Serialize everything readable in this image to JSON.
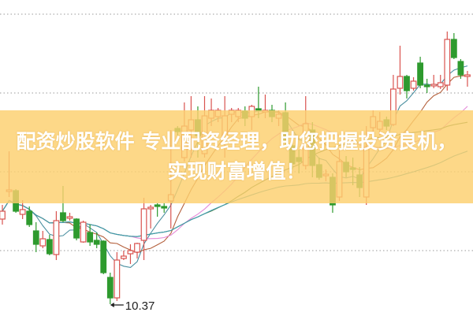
{
  "banner": {
    "line1": "配资炒股软件 专业配资经理，助您把握投资良机，",
    "line2": "实现财富增值！"
  },
  "colors": {
    "up": "#d9534f",
    "down": "#2e9a2e",
    "banner": "#fccf6e",
    "ma": [
      "#4a8fa0",
      "#b4603c",
      "#e58ad8",
      "#4f7d3c",
      "#3d9cb0"
    ]
  },
  "chart_data": {
    "type": "candlestick",
    "title": "",
    "grid": true,
    "annotations": [
      {
        "text": "10.37",
        "target": "lowest-low"
      }
    ],
    "moving_averages": [
      5,
      10,
      20,
      30,
      60
    ],
    "candles": [
      [
        12.53,
        12.73,
        12.89,
        12.39
      ],
      [
        13.23,
        13.27,
        14.25,
        13.09
      ],
      [
        13.25,
        12.73,
        13.29,
        12.69
      ],
      [
        12.65,
        12.77,
        13.01,
        12.53
      ],
      [
        12.73,
        12.39,
        12.85,
        12.33
      ],
      [
        12.23,
        11.89,
        12.45,
        11.69
      ],
      [
        11.85,
        12.03,
        12.23,
        11.79
      ],
      [
        12.01,
        11.65,
        12.13,
        11.61
      ],
      [
        11.63,
        12.49,
        12.73,
        11.49
      ],
      [
        12.69,
        12.49,
        13.37,
        12.45
      ],
      [
        12.55,
        12.59,
        12.69,
        12.49
      ],
      [
        12.53,
        12.05,
        12.55,
        11.99
      ],
      [
        11.95,
        12.45,
        12.49,
        11.93
      ],
      [
        12.19,
        11.95,
        12.39,
        11.85
      ],
      [
        11.99,
        11.89,
        12.19,
        11.79
      ],
      [
        11.97,
        11.17,
        11.99,
        11.13
      ],
      [
        11.05,
        10.53,
        11.17,
        10.37
      ],
      [
        10.53,
        11.49,
        11.69,
        10.45
      ],
      [
        11.53,
        11.59,
        11.73,
        11.49
      ],
      [
        11.65,
        11.73,
        11.89,
        11.39
      ],
      [
        11.69,
        11.91,
        11.93,
        11.53
      ],
      [
        11.99,
        12.79,
        13.07,
        11.49
      ],
      [
        12.79,
        12.83,
        12.89,
        12.29
      ],
      [
        12.89,
        12.85,
        12.93,
        12.59
      ],
      [
        12.85,
        12.81,
        12.93,
        12.69
      ],
      [
        12.99,
        13.15,
        14.79,
        12.29
      ],
      [
        14.83,
        14.75,
        14.89,
        14.65
      ],
      [
        14.09,
        14.89,
        15.49,
        13.99
      ],
      [
        14.79,
        15.05,
        15.65,
        14.09
      ],
      [
        15.05,
        14.65,
        15.39,
        14.09
      ],
      [
        14.19,
        15.15,
        15.65,
        14.09
      ],
      [
        15.09,
        15.29,
        15.59,
        14.89
      ],
      [
        15.13,
        15.29,
        15.35,
        14.99
      ],
      [
        14.55,
        15.15,
        15.65,
        14.09
      ],
      [
        15.19,
        15.29,
        15.35,
        14.99
      ],
      [
        15.13,
        15.29,
        15.35,
        14.99
      ],
      [
        15.27,
        15.09,
        15.39,
        14.89
      ],
      [
        15.13,
        15.39,
        15.43,
        14.79
      ],
      [
        15.33,
        15.29,
        15.89,
        15.09
      ],
      [
        15.25,
        15.29,
        15.69,
        15.09
      ],
      [
        15.29,
        15.13,
        15.43,
        14.99
      ],
      [
        15.09,
        15.19,
        15.29,
        14.89
      ],
      [
        15.23,
        14.49,
        15.49,
        14.39
      ],
      [
        14.39,
        13.93,
        14.69,
        13.79
      ],
      [
        14.09,
        13.99,
        14.29,
        13.69
      ],
      [
        13.89,
        14.95,
        15.65,
        13.79
      ],
      [
        14.79,
        13.89,
        14.99,
        13.59
      ],
      [
        13.91,
        13.59,
        14.09,
        13.53
      ],
      [
        13.63,
        13.67,
        13.79,
        13.49
      ],
      [
        13.59,
        12.89,
        13.69,
        12.69
      ],
      [
        13.09,
        13.99,
        14.29,
        12.99
      ],
      [
        13.97,
        13.73,
        14.13,
        13.59
      ],
      [
        13.83,
        13.79,
        14.09,
        13.39
      ],
      [
        13.65,
        13.33,
        13.85,
        13.09
      ],
      [
        13.09,
        14.33,
        14.89,
        12.89
      ],
      [
        14.85,
        15.13,
        15.29,
        14.69
      ],
      [
        14.81,
        15.01,
        15.25,
        14.65
      ],
      [
        15.05,
        14.89,
        15.13,
        14.79
      ],
      [
        14.93,
        15.83,
        16.19,
        14.89
      ],
      [
        15.85,
        16.15,
        16.93,
        15.69
      ],
      [
        16.15,
        15.79,
        16.19,
        15.59
      ],
      [
        15.85,
        16.03,
        16.13,
        15.79
      ],
      [
        16.49,
        15.93,
        16.65,
        15.85
      ],
      [
        15.93,
        15.89,
        16.09,
        15.73
      ],
      [
        15.91,
        15.95,
        16.19,
        15.85
      ],
      [
        15.89,
        15.99,
        16.19,
        15.83
      ],
      [
        15.93,
        17.09,
        17.29,
        15.79
      ],
      [
        17.09,
        16.63,
        17.25,
        16.59
      ],
      [
        16.53,
        16.19,
        16.59,
        16.09
      ],
      [
        16.15,
        16.19,
        16.29,
        15.89
      ]
    ],
    "candle_fields": [
      "open",
      "close",
      "high",
      "low"
    ]
  }
}
